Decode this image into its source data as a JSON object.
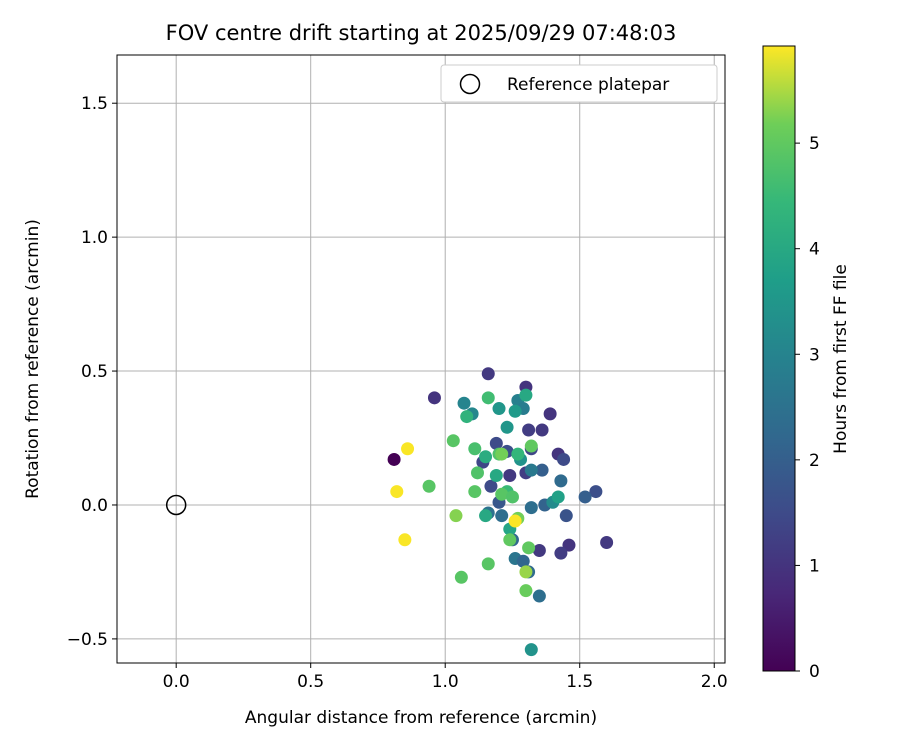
{
  "chart_data": {
    "type": "scatter",
    "title": "FOV centre drift starting at 2025/09/29 07:48:03",
    "xlabel": "Angular distance from reference (arcmin)",
    "ylabel": "Rotation from reference (arcmin)",
    "xlim": [
      -0.22,
      2.04
    ],
    "ylim": [
      -0.59,
      1.68
    ],
    "xticks": [
      0.0,
      0.5,
      1.0,
      1.5,
      2.0
    ],
    "xtick_labels": [
      "0.0",
      "0.5",
      "1.0",
      "1.5",
      "2.0"
    ],
    "yticks": [
      -0.5,
      0.0,
      0.5,
      1.0,
      1.5
    ],
    "ytick_labels": [
      "−0.5",
      "0.0",
      "0.5",
      "1.0",
      "1.5"
    ],
    "grid": true,
    "legend": {
      "position": "top-right",
      "entries": [
        "Reference platepar"
      ]
    },
    "reference_point": {
      "name": "Reference platepar",
      "x": 0.0,
      "y": 0.0
    },
    "colorbar": {
      "label": "Hours from first FF file",
      "colormap": "viridis",
      "range": [
        0,
        5.92
      ],
      "ticks": [
        0,
        1,
        2,
        3,
        4,
        5
      ],
      "tick_labels": [
        "0",
        "1",
        "2",
        "3",
        "4",
        "5"
      ]
    },
    "points": [
      {
        "x": 0.81,
        "y": 0.17,
        "h": 0.0
      },
      {
        "x": 0.96,
        "y": 0.4,
        "h": 1.0
      },
      {
        "x": 1.16,
        "y": 0.49,
        "h": 1.1
      },
      {
        "x": 1.3,
        "y": 0.44,
        "h": 1.0
      },
      {
        "x": 1.39,
        "y": 0.34,
        "h": 1.0
      },
      {
        "x": 1.31,
        "y": 0.28,
        "h": 1.2
      },
      {
        "x": 1.36,
        "y": 0.28,
        "h": 1.1
      },
      {
        "x": 1.42,
        "y": 0.19,
        "h": 1.0
      },
      {
        "x": 1.44,
        "y": 0.17,
        "h": 1.5
      },
      {
        "x": 1.6,
        "y": -0.14,
        "h": 1.1
      },
      {
        "x": 1.46,
        "y": -0.15,
        "h": 1.0
      },
      {
        "x": 1.43,
        "y": -0.18,
        "h": 1.2
      },
      {
        "x": 1.35,
        "y": -0.17,
        "h": 1.1
      },
      {
        "x": 1.56,
        "y": 0.05,
        "h": 1.6
      },
      {
        "x": 1.52,
        "y": 0.03,
        "h": 2.0
      },
      {
        "x": 1.45,
        "y": -0.04,
        "h": 1.7
      },
      {
        "x": 1.43,
        "y": 0.09,
        "h": 2.3
      },
      {
        "x": 1.37,
        "y": 0.0,
        "h": 2.1
      },
      {
        "x": 1.36,
        "y": 0.13,
        "h": 2.0
      },
      {
        "x": 1.32,
        "y": 0.21,
        "h": 1.4
      },
      {
        "x": 1.3,
        "y": 0.12,
        "h": 1.2
      },
      {
        "x": 1.24,
        "y": 0.11,
        "h": 1.1
      },
      {
        "x": 1.23,
        "y": 0.2,
        "h": 1.6
      },
      {
        "x": 1.19,
        "y": 0.23,
        "h": 1.5
      },
      {
        "x": 1.14,
        "y": 0.16,
        "h": 1.4
      },
      {
        "x": 1.17,
        "y": 0.07,
        "h": 1.5
      },
      {
        "x": 1.2,
        "y": 0.01,
        "h": 1.8
      },
      {
        "x": 1.16,
        "y": -0.03,
        "h": 2.5
      },
      {
        "x": 1.21,
        "y": -0.04,
        "h": 2.4
      },
      {
        "x": 1.25,
        "y": -0.13,
        "h": 2.2
      },
      {
        "x": 1.26,
        "y": -0.2,
        "h": 2.6
      },
      {
        "x": 1.29,
        "y": -0.21,
        "h": 2.2
      },
      {
        "x": 1.31,
        "y": -0.25,
        "h": 2.3
      },
      {
        "x": 1.35,
        "y": -0.34,
        "h": 2.4
      },
      {
        "x": 1.32,
        "y": -0.01,
        "h": 2.4
      },
      {
        "x": 1.07,
        "y": 0.38,
        "h": 3.0
      },
      {
        "x": 1.1,
        "y": 0.34,
        "h": 3.1
      },
      {
        "x": 1.27,
        "y": 0.39,
        "h": 2.9
      },
      {
        "x": 1.29,
        "y": 0.36,
        "h": 2.8
      },
      {
        "x": 1.32,
        "y": 0.13,
        "h": 2.7
      },
      {
        "x": 1.4,
        "y": 0.01,
        "h": 3.2
      },
      {
        "x": 1.28,
        "y": 0.17,
        "h": 3.4
      },
      {
        "x": 1.2,
        "y": 0.36,
        "h": 3.5
      },
      {
        "x": 1.26,
        "y": 0.35,
        "h": 3.6
      },
      {
        "x": 1.23,
        "y": 0.29,
        "h": 3.5
      },
      {
        "x": 1.32,
        "y": -0.54,
        "h": 3.4
      },
      {
        "x": 1.3,
        "y": 0.41,
        "h": 4.0
      },
      {
        "x": 1.19,
        "y": 0.11,
        "h": 4.0
      },
      {
        "x": 1.42,
        "y": 0.03,
        "h": 3.8
      },
      {
        "x": 1.24,
        "y": -0.09,
        "h": 3.9
      },
      {
        "x": 1.15,
        "y": -0.04,
        "h": 4.0
      },
      {
        "x": 1.15,
        "y": 0.18,
        "h": 4.1
      },
      {
        "x": 1.08,
        "y": 0.33,
        "h": 4.3
      },
      {
        "x": 1.27,
        "y": 0.19,
        "h": 4.4
      },
      {
        "x": 1.23,
        "y": 0.05,
        "h": 4.5
      },
      {
        "x": 1.16,
        "y": 0.4,
        "h": 4.6
      },
      {
        "x": 1.11,
        "y": 0.21,
        "h": 4.7
      },
      {
        "x": 1.2,
        "y": 0.19,
        "h": 4.8
      },
      {
        "x": 1.21,
        "y": 0.19,
        "h": 5.2
      },
      {
        "x": 1.03,
        "y": 0.24,
        "h": 4.9
      },
      {
        "x": 1.12,
        "y": 0.12,
        "h": 4.8
      },
      {
        "x": 1.11,
        "y": 0.05,
        "h": 4.9
      },
      {
        "x": 0.94,
        "y": 0.07,
        "h": 4.9
      },
      {
        "x": 1.04,
        "y": -0.04,
        "h": 5.3
      },
      {
        "x": 1.21,
        "y": 0.04,
        "h": 4.9
      },
      {
        "x": 1.25,
        "y": 0.03,
        "h": 4.8
      },
      {
        "x": 1.24,
        "y": -0.13,
        "h": 5.0
      },
      {
        "x": 1.27,
        "y": -0.05,
        "h": 5.2
      },
      {
        "x": 1.31,
        "y": -0.16,
        "h": 5.0
      },
      {
        "x": 1.3,
        "y": -0.25,
        "h": 5.4
      },
      {
        "x": 1.3,
        "y": -0.32,
        "h": 5.1
      },
      {
        "x": 1.16,
        "y": -0.22,
        "h": 4.9
      },
      {
        "x": 1.06,
        "y": -0.27,
        "h": 4.9
      },
      {
        "x": 1.32,
        "y": 0.22,
        "h": 5.0
      },
      {
        "x": 1.26,
        "y": -0.06,
        "h": 5.9
      },
      {
        "x": 0.86,
        "y": 0.21,
        "h": 5.9
      },
      {
        "x": 0.82,
        "y": 0.05,
        "h": 5.9
      },
      {
        "x": 0.85,
        "y": -0.13,
        "h": 5.9
      }
    ]
  }
}
